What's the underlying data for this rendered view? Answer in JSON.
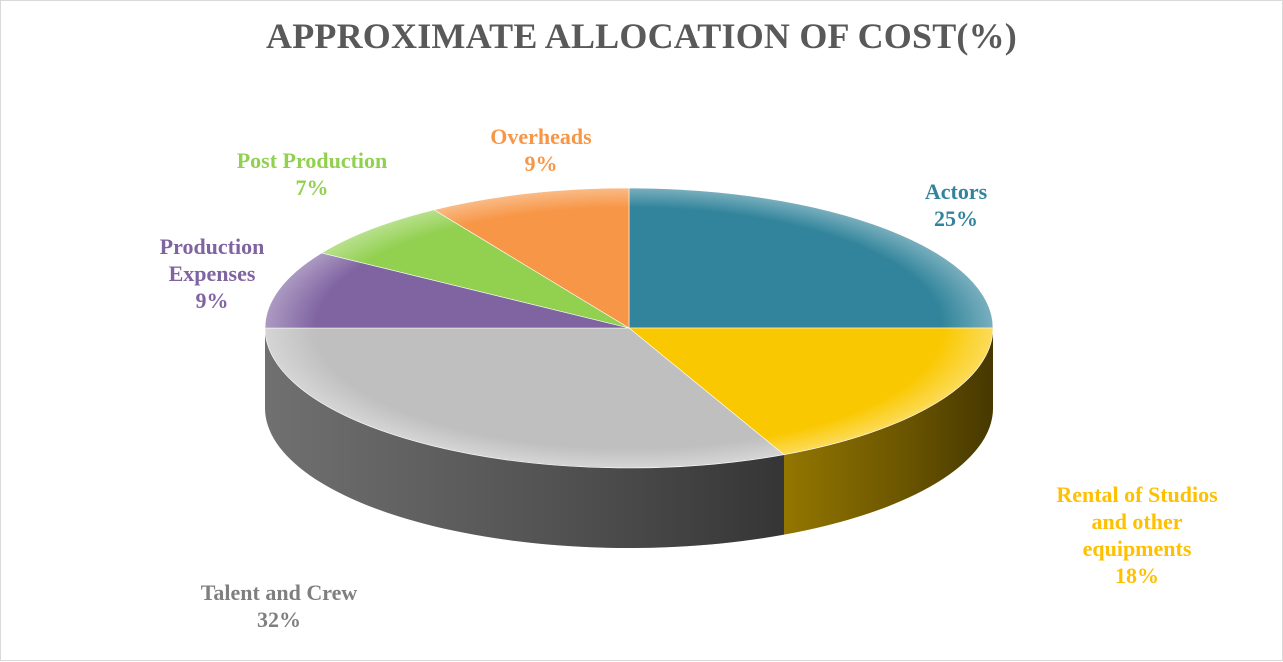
{
  "chart_data": {
    "type": "pie",
    "title": "APPROXIMATE ALLOCATION OF COST(%)",
    "slices": [
      {
        "label_lines": [
          "Actors"
        ],
        "value": 25,
        "value_label": "25%",
        "color": "#31849b"
      },
      {
        "label_lines": [
          "Rental of Studios",
          "and other",
          "equipments"
        ],
        "value": 18,
        "value_label": "18%",
        "color": "#fac800"
      },
      {
        "label_lines": [
          "Talent and Crew"
        ],
        "value": 32,
        "value_label": "32%",
        "color": "#bfbfbf"
      },
      {
        "label_lines": [
          "Production",
          "Expenses"
        ],
        "value": 9,
        "value_label": "9%",
        "color": "#8064a2"
      },
      {
        "label_lines": [
          "Post Production"
        ],
        "value": 7,
        "value_label": "7%",
        "color": "#92d050"
      },
      {
        "label_lines": [
          "Overheads"
        ],
        "value": 9,
        "value_label": "9%",
        "color": "#f79646"
      }
    ],
    "label_colors": [
      "#31849b",
      "#ffc000",
      "#7f7f7f",
      "#8064a2",
      "#92d050",
      "#f79646"
    ],
    "start": "top, clockwise",
    "style": "3D pie"
  }
}
